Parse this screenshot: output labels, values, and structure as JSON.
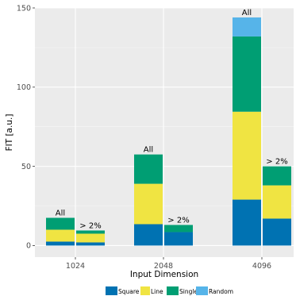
{
  "chart_data": {
    "type": "bar",
    "stacked": true,
    "xlabel": "Input Dimension",
    "ylabel": "FIT [a.u.]",
    "ylim": [
      0,
      150
    ],
    "yticks": [
      0,
      50,
      100,
      150
    ],
    "categories": [
      "1024",
      "2048",
      "4096"
    ],
    "series": [
      {
        "name": "Square",
        "color": "#0072B2"
      },
      {
        "name": "Line",
        "color": "#F0E442"
      },
      {
        "name": "Single",
        "color": "#009E73"
      },
      {
        "name": "Random",
        "color": "#56B4E9"
      }
    ],
    "bars": [
      {
        "category": "1024",
        "label": "All",
        "values": {
          "Square": 2.5,
          "Line": 7.5,
          "Single": 7.5,
          "Random": 0
        }
      },
      {
        "category": "1024",
        "label": "> 2%",
        "values": {
          "Square": 2,
          "Line": 5.5,
          "Single": 2,
          "Random": 0
        }
      },
      {
        "category": "2048",
        "label": "All",
        "values": {
          "Square": 13.5,
          "Line": 25.5,
          "Single": 18.5,
          "Random": 0
        }
      },
      {
        "category": "2048",
        "label": "> 2%",
        "values": {
          "Square": 8.5,
          "Line": 0,
          "Single": 4.5,
          "Random": 0
        }
      },
      {
        "category": "4096",
        "label": "All",
        "values": {
          "Square": 29,
          "Line": 55.5,
          "Single": 47.5,
          "Random": 12
        }
      },
      {
        "category": "4096",
        "label": "> 2%",
        "values": {
          "Square": 17,
          "Line": 21,
          "Single": 12,
          "Random": 0
        }
      }
    ],
    "grid": true,
    "legend_position": "bottom"
  }
}
